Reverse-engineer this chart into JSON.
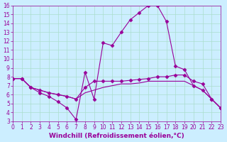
{
  "xlabel": "Windchill (Refroidissement éolien,°C)",
  "xlim": [
    0,
    23
  ],
  "ylim": [
    3,
    16
  ],
  "yticks": [
    3,
    4,
    5,
    6,
    7,
    8,
    9,
    10,
    11,
    12,
    13,
    14,
    15,
    16
  ],
  "xticks": [
    0,
    1,
    2,
    3,
    4,
    5,
    6,
    7,
    8,
    9,
    10,
    11,
    12,
    13,
    14,
    15,
    16,
    17,
    18,
    19,
    20,
    21,
    22,
    23
  ],
  "bg_color": "#cceeff",
  "line_color": "#990099",
  "lines": [
    {
      "x": [
        0,
        1,
        2,
        3,
        4,
        5,
        6,
        7,
        8,
        9,
        10,
        11,
        12,
        13,
        14,
        15,
        16,
        17,
        18,
        19,
        20,
        21,
        22,
        23
      ],
      "y": [
        7.8,
        7.8,
        6.8,
        6.2,
        5.8,
        5.2,
        4.5,
        3.2,
        8.5,
        5.5,
        11.8,
        11.5,
        13.0,
        14.4,
        15.2,
        16.0,
        16.0,
        14.2,
        9.2,
        8.8,
        7.0,
        6.5,
        5.5,
        4.5
      ],
      "marker": "D",
      "markersize": 2.5
    },
    {
      "x": [
        0,
        1,
        2,
        3,
        4,
        5,
        6,
        7,
        8,
        9,
        10,
        11,
        12,
        13,
        14,
        15,
        16,
        17,
        18,
        19,
        20,
        21,
        22,
        23
      ],
      "y": [
        7.8,
        7.8,
        6.8,
        6.5,
        6.2,
        6.0,
        5.8,
        5.5,
        6.8,
        7.5,
        7.5,
        7.5,
        7.5,
        7.6,
        7.7,
        7.8,
        8.0,
        8.0,
        8.2,
        8.2,
        7.5,
        7.2,
        5.5,
        4.5
      ],
      "marker": "D",
      "markersize": 2.5
    },
    {
      "x": [
        0,
        1,
        2,
        3,
        4,
        5,
        6,
        7,
        8,
        9,
        10,
        11,
        12,
        13,
        14,
        15,
        16,
        17,
        18,
        19,
        20,
        21,
        22,
        23
      ],
      "y": [
        7.8,
        7.8,
        6.8,
        6.5,
        6.2,
        6.0,
        5.8,
        5.5,
        6.2,
        6.5,
        6.8,
        7.0,
        7.2,
        7.2,
        7.3,
        7.5,
        7.5,
        7.5,
        7.5,
        7.5,
        7.0,
        6.5,
        5.5,
        4.5
      ],
      "marker": null,
      "markersize": 0
    }
  ],
  "grid_color": "#aaddcc",
  "tick_fontsize": 5.5,
  "xlabel_fontsize": 6.5,
  "xlabel_color": "#990099",
  "tick_color": "#990099"
}
